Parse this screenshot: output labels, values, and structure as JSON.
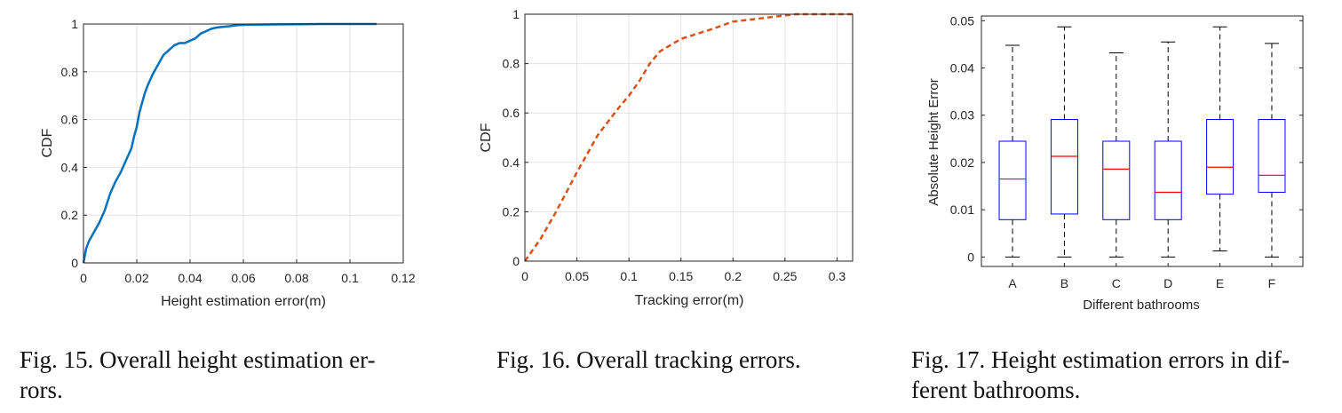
{
  "chart_data": [
    {
      "type": "line",
      "xlabel": "Height estimation error(m)",
      "ylabel": "CDF",
      "xlim": [
        0,
        0.12
      ],
      "ylim": [
        0,
        1
      ],
      "xticks": [
        "0",
        "0.02",
        "0.04",
        "0.06",
        "0.08",
        "0.1",
        "0.12"
      ],
      "yticks": [
        "0",
        "0.2",
        "0.4",
        "0.6",
        "0.8",
        "1"
      ],
      "grid": true,
      "color": "#0072BD",
      "x": [
        0,
        0.0005,
        0.001,
        0.002,
        0.004,
        0.006,
        0.008,
        0.01,
        0.012,
        0.014,
        0.016,
        0.018,
        0.019,
        0.02,
        0.021,
        0.022,
        0.023,
        0.024,
        0.026,
        0.028,
        0.03,
        0.032,
        0.034,
        0.036,
        0.038,
        0.04,
        0.042,
        0.044,
        0.046,
        0.048,
        0.05,
        0.054,
        0.058,
        0.062,
        0.07,
        0.08,
        0.09,
        0.1,
        0.11
      ],
      "y": [
        0,
        0.03,
        0.06,
        0.09,
        0.13,
        0.17,
        0.22,
        0.29,
        0.34,
        0.38,
        0.43,
        0.48,
        0.53,
        0.57,
        0.63,
        0.67,
        0.71,
        0.74,
        0.79,
        0.83,
        0.87,
        0.89,
        0.91,
        0.92,
        0.92,
        0.93,
        0.94,
        0.96,
        0.97,
        0.98,
        0.985,
        0.99,
        0.995,
        0.997,
        0.998,
        0.999,
        1,
        1,
        1
      ]
    },
    {
      "type": "line",
      "xlabel": "Tracking error(m)",
      "ylabel": "CDF",
      "xlim": [
        0,
        0.315
      ],
      "ylim": [
        0,
        1
      ],
      "xticks": [
        "0",
        "0.05",
        "0.1",
        "0.15",
        "0.2",
        "0.25",
        "0.3"
      ],
      "yticks": [
        "0",
        "0.2",
        "0.4",
        "0.6",
        "0.8",
        "1"
      ],
      "grid": true,
      "color": "#D95319",
      "line_style": "dashed",
      "x": [
        0,
        0.015,
        0.03,
        0.05,
        0.07,
        0.09,
        0.1,
        0.11,
        0.12,
        0.13,
        0.15,
        0.18,
        0.2,
        0.22,
        0.24,
        0.26,
        0.28,
        0.3,
        0.315
      ],
      "y": [
        0,
        0.09,
        0.2,
        0.36,
        0.51,
        0.62,
        0.67,
        0.73,
        0.8,
        0.85,
        0.9,
        0.94,
        0.97,
        0.98,
        0.99,
        1,
        1,
        1,
        1
      ]
    },
    {
      "type": "box",
      "xlabel": "Different bathrooms",
      "ylabel": "Absolute Height Error",
      "ylim": [
        -0.002,
        0.051
      ],
      "yticks": [
        "0",
        "0.01",
        "0.02",
        "0.03",
        "0.04",
        "0.05"
      ],
      "grid": false,
      "box_color": "#0000FF",
      "median_color": "#FF0000",
      "categories": [
        "A",
        "B",
        "C",
        "D",
        "E",
        "F"
      ],
      "boxes": [
        {
          "min": 0.0,
          "q1": 0.0079,
          "median": 0.0165,
          "q3": 0.0245,
          "max": 0.0448
        },
        {
          "min": 0.0,
          "q1": 0.0091,
          "median": 0.0213,
          "q3": 0.0291,
          "max": 0.0487
        },
        {
          "min": 0.0,
          "q1": 0.0079,
          "median": 0.0186,
          "q3": 0.0245,
          "max": 0.0432
        },
        {
          "min": 0.0,
          "q1": 0.0079,
          "median": 0.0137,
          "q3": 0.0245,
          "max": 0.0455
        },
        {
          "min": 0.0013,
          "q1": 0.0133,
          "median": 0.019,
          "q3": 0.0291,
          "max": 0.0487
        },
        {
          "min": 0.0,
          "q1": 0.0137,
          "median": 0.0173,
          "q3": 0.0291,
          "max": 0.0452
        }
      ]
    }
  ],
  "captions": [
    {
      "line1": "Fig. 15.  Overall height estimation er-",
      "line2": "rors."
    },
    {
      "line1": "Fig. 16.  Overall tracking errors.",
      "line2": ""
    },
    {
      "line1": "Fig. 17.  Height estimation errors in dif-",
      "line2": "ferent bathrooms."
    }
  ]
}
